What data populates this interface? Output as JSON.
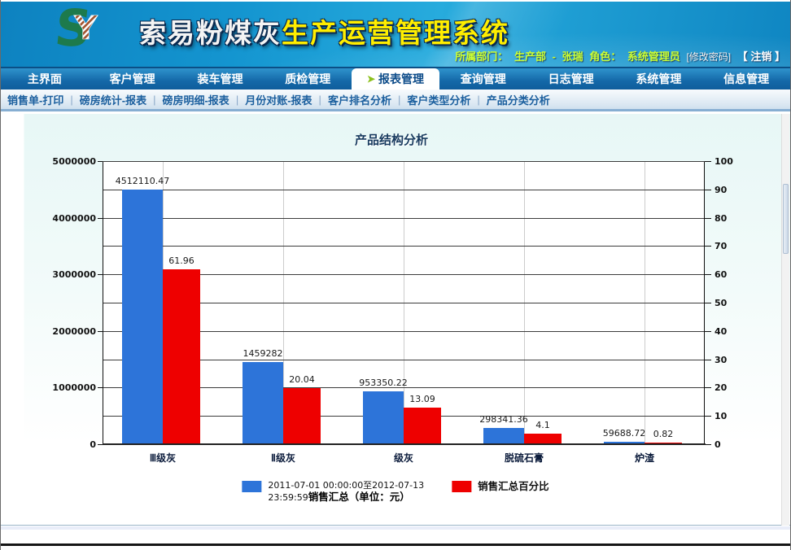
{
  "header": {
    "title_white": "索易粉煤灰",
    "title_yellow": "生产运营管理系统",
    "user_info": {
      "dept_label": "所属部门：",
      "dept": "生产部",
      "separator": "-",
      "name": "张瑞",
      "role_label": "角色：",
      "role": "系统管理员",
      "change_pwd": "[修改密码]",
      "logout": "【 注销 】"
    }
  },
  "nav": {
    "tabs": [
      {
        "label": "主界面",
        "active": false
      },
      {
        "label": "客户管理",
        "active": false
      },
      {
        "label": "装车管理",
        "active": false
      },
      {
        "label": "质检管理",
        "active": false
      },
      {
        "label": "报表管理",
        "active": true
      },
      {
        "label": "查询管理",
        "active": false
      },
      {
        "label": "日志管理",
        "active": false
      },
      {
        "label": "系统管理",
        "active": false
      },
      {
        "label": "信息管理",
        "active": false
      }
    ]
  },
  "subnav": {
    "separator": "|",
    "items": [
      "销售单-打印",
      "磅房统计-报表",
      "磅房明细-报表",
      "月份对账-报表",
      "客户排名分析",
      "客户类型分析",
      "产品分类分析"
    ]
  },
  "icons": {
    "active_tab_arrow": "➤",
    "logo": "soyi-sy-logo"
  },
  "colors": {
    "bar_blue": "#2d74d9",
    "bar_red": "#ee0000",
    "nav_blue": "#1468a8",
    "title_yellow": "#ffee00",
    "user_info_green": "#ccff33",
    "logo_green": "#1d7a4c",
    "logo_stripe_brown": "#a0522d"
  },
  "chart_data": {
    "type": "bar",
    "title": "产品结构分析",
    "categories": [
      "Ⅲ级灰",
      "Ⅱ级灰",
      "级灰",
      "脱硫石膏",
      "炉渣"
    ],
    "series": [
      {
        "name": "2011-07-01 00:00:00至2012-07-13 23:59:59销售汇总（单位：元）",
        "axis": "left",
        "color": "#2d74d9",
        "values": [
          4512110.47,
          1459282,
          953350.22,
          298341.36,
          59688.72
        ],
        "labels": [
          "4512110.47",
          "1459282",
          "953350.22",
          "298341.36",
          "59688.72"
        ]
      },
      {
        "name": "销售汇总百分比",
        "axis": "right",
        "color": "#ee0000",
        "values": [
          61.96,
          20.04,
          13.09,
          4.1,
          0.82
        ],
        "labels": [
          "61.96",
          "20.04",
          "13.09",
          "4.1",
          "0.82"
        ]
      }
    ],
    "left_axis": {
      "min": 0,
      "max": 5000000,
      "label_step": 1000000,
      "grid_step": 500000,
      "ticks": [
        "0",
        "1000000",
        "2000000",
        "3000000",
        "4000000",
        "5000000"
      ]
    },
    "right_axis": {
      "min": 0,
      "max": 100,
      "label_step": 10,
      "ticks": [
        "0",
        "10",
        "20",
        "30",
        "40",
        "50",
        "60",
        "70",
        "80",
        "90",
        "100"
      ]
    },
    "grid": true,
    "legend_position": "bottom",
    "legend": {
      "blue_line1": "2011-07-01  00:00:00至2012-07-13",
      "blue_line2_normal": "23:59:59",
      "blue_line2_bold": "销售汇总（单位：元）",
      "red_label": "销售汇总百分比"
    }
  }
}
